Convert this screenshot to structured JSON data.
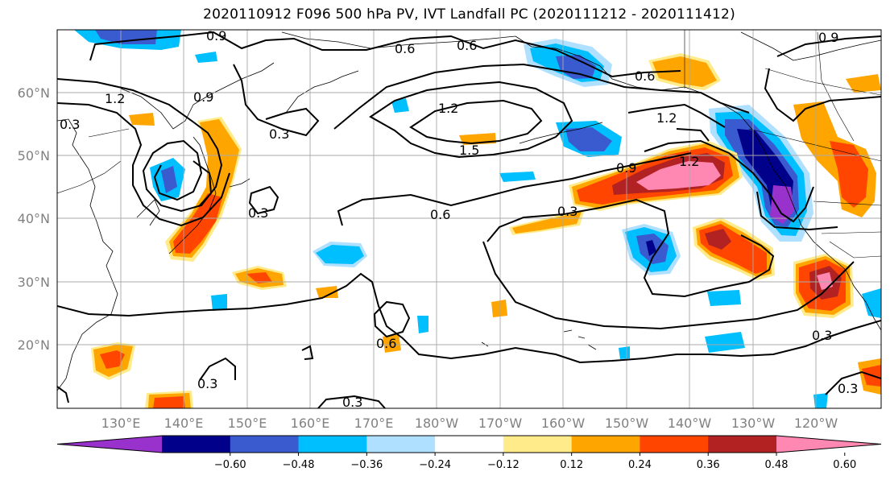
{
  "title": "2020110912 F096 500 hPa PV, IVT Landfall PC (2020111212 - 2020111412)",
  "lat_labels": [
    "60°N",
    "50°N",
    "40°N",
    "30°N",
    "20°N"
  ],
  "lon_labels": [
    "130°E",
    "140°E",
    "150°E",
    "160°E",
    "170°E",
    "180°W",
    "170°W",
    "160°W",
    "150°W",
    "140°W",
    "130°W",
    "120°W"
  ],
  "contour_labels": [
    "0.9",
    "0.6",
    "0.6",
    "0.9",
    "0.6",
    "1.2",
    "1.2",
    "1.2",
    "0.9",
    "0.3",
    "0.3",
    "1.5",
    "1.2",
    "0.9",
    "0.3",
    "0.6",
    "0.3",
    "0.6",
    "0.3",
    "0.3",
    "0.3",
    "0.3"
  ],
  "colorbar": {
    "colors": [
      "#9932CC",
      "#00008B",
      "#3A5BD0",
      "#00BFFF",
      "#B0E0FF",
      "#FFFFFF",
      "#FFEB8A",
      "#FFA500",
      "#FF4500",
      "#B22222",
      "#FF88B3"
    ],
    "tick_labels": [
      "−0.60",
      "−0.48",
      "−0.36",
      "−0.24",
      "−0.12",
      "0.12",
      "0.24",
      "0.36",
      "0.48",
      "0.60"
    ]
  }
}
